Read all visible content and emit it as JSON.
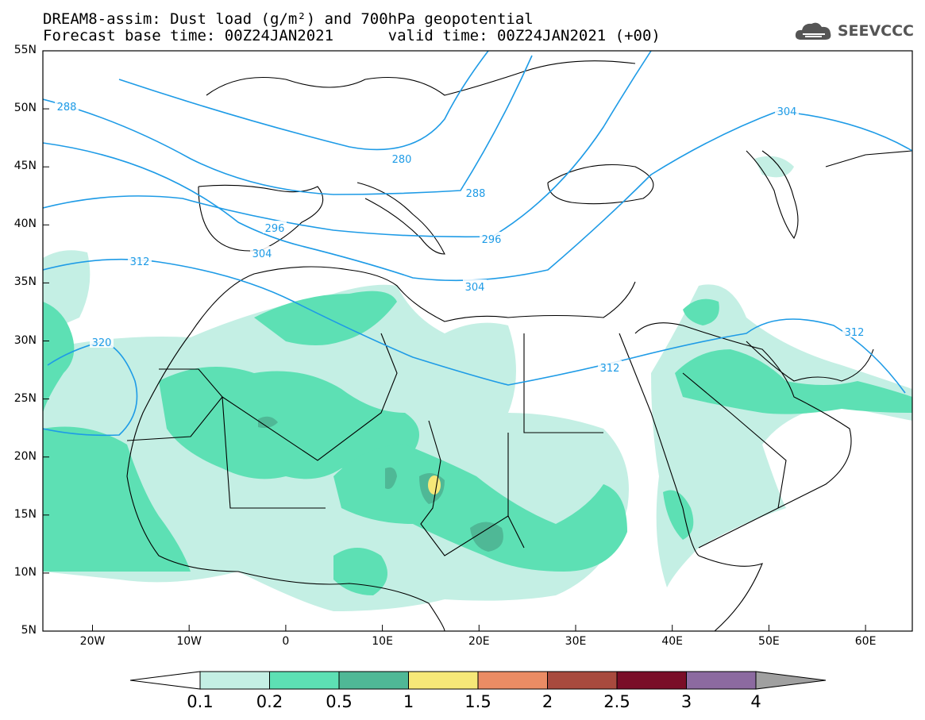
{
  "title": {
    "line1": "DREAM8-assim: Dust load (g/m²) and 700hPa geopotential",
    "line2": "Forecast base time: 00Z24JAN2021      valid time: 00Z24JAN2021 (+00)"
  },
  "logo": {
    "text": "SEEVCCC",
    "icon": "cloud-icon"
  },
  "axes": {
    "lat_labels": [
      "55N",
      "50N",
      "45N",
      "40N",
      "35N",
      "30N",
      "25N",
      "20N",
      "15N",
      "10N",
      "5N"
    ],
    "lon_labels": [
      "20W",
      "10W",
      "0",
      "10E",
      "20E",
      "30E",
      "40E",
      "50E",
      "60E"
    ]
  },
  "contours": {
    "labels": [
      "288",
      "280",
      "288",
      "296",
      "296",
      "304",
      "304",
      "312",
      "312",
      "312",
      "320",
      "304"
    ],
    "color": "#1e9be6"
  },
  "colorbar": {
    "labels": [
      "0.1",
      "0.2",
      "0.5",
      "1",
      "1.5",
      "2",
      "2.5",
      "3",
      "4"
    ],
    "colors": [
      "#ffffff",
      "#c4efe4",
      "#5de0b4",
      "#4fb896",
      "#f6e878",
      "#ea8c64",
      "#a84a3e",
      "#7a0e28",
      "#8c6aa0",
      "#a0a0a0"
    ]
  },
  "fills": {
    "light": "#c4efe4",
    "medium": "#5de0b4",
    "dark": "#4fb896",
    "yellow": "#f6e878"
  }
}
